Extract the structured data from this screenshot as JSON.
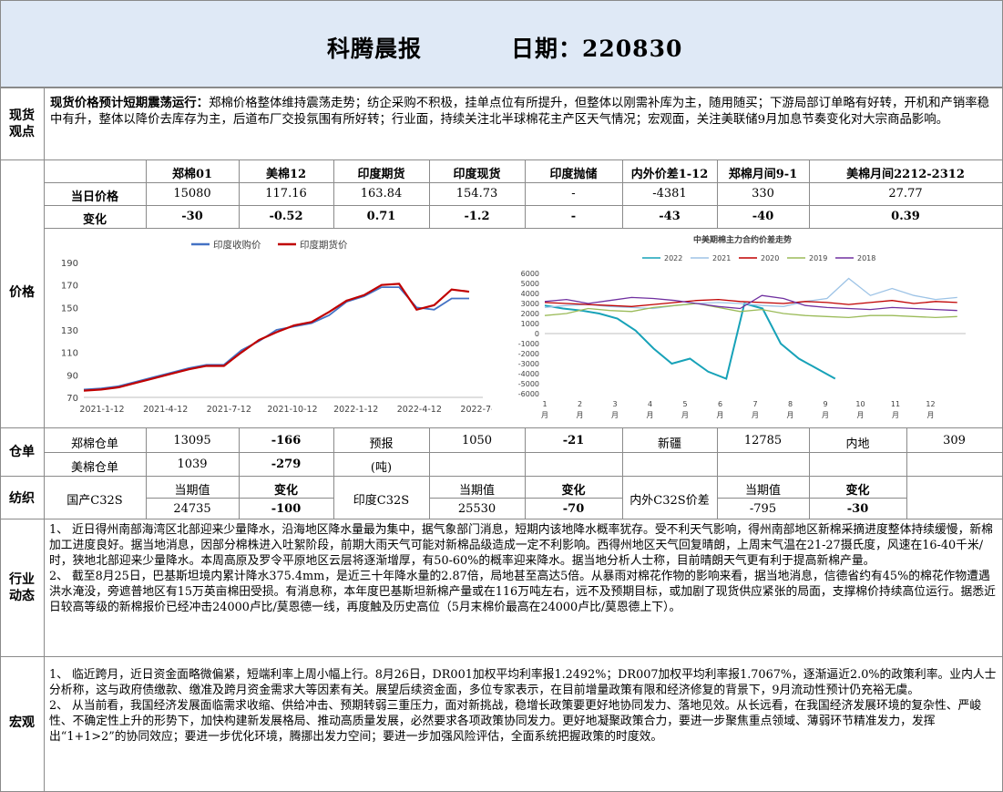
{
  "header": {
    "title": "科腾晨报",
    "date_label": "日期：220830"
  },
  "sections": {
    "spot": "现货\n观点",
    "price": "价格",
    "warehouse": "仓单",
    "textile": "纺织",
    "industry": "行业\n动态",
    "macro": "宏观"
  },
  "spot": {
    "lead": "现货价格预计短期震荡运行：",
    "body": "郑棉价格整体维持震荡走势；纺企采购不积极，挂单点位有所提升，但整体以刚需补库为主，随用随买；下游局部订单略有好转，开机和产销率稳中有升，整体以降价去库存为主，后道布厂交投氛围有所好转；行业面，持续关注北半球棉花主产区天气情况；宏观面，关注美联储9月加息节奏变化对大宗商品影响。"
  },
  "price_table": {
    "headers": [
      "郑棉01",
      "美棉12",
      "印度期货",
      "印度现货",
      "印度抛储",
      "内外价差1-12",
      "郑棉月间9-1",
      "美棉月间2212-2312"
    ],
    "row1_label": "当日价格",
    "row1": [
      "15080",
      "117.16",
      "163.84",
      "154.73",
      "-",
      "-4381",
      "330",
      "27.77"
    ],
    "row2_label": "变化",
    "row2": [
      "-30",
      "-0.52",
      "0.71",
      "-1.2",
      "-",
      "-43",
      "-40",
      "0.39"
    ]
  },
  "chart_data": [
    {
      "type": "line",
      "title": "",
      "legend": [
        "印度收购价",
        "印度期货价"
      ],
      "colors": [
        "#4472c4",
        "#c00000"
      ],
      "yticks": [
        "190",
        "170",
        "150",
        "130",
        "110",
        "90",
        "70"
      ],
      "ylim": [
        70,
        190
      ],
      "xticks": [
        "2021-1-12",
        "2021-4-12",
        "2021-7-12",
        "2021-10-12",
        "2022-1-12",
        "2022-4-12",
        "2022-7-12"
      ],
      "series": [
        {
          "name": "印度收购价",
          "values": [
            77,
            78,
            80,
            84,
            88,
            92,
            96,
            99,
            99,
            112,
            120,
            130,
            133,
            136,
            143,
            155,
            160,
            168,
            168,
            150,
            148,
            158,
            158
          ]
        },
        {
          "name": "印度期货价",
          "values": [
            76,
            77,
            79,
            83,
            87,
            91,
            95,
            98,
            98,
            110,
            121,
            128,
            134,
            137,
            146,
            156,
            161,
            170,
            171,
            148,
            152,
            166,
            164
          ]
        }
      ]
    },
    {
      "type": "line",
      "title": "中美期棉主力合约价差走势",
      "legend": [
        "2022",
        "2021",
        "2020",
        "2019",
        "2018"
      ],
      "colors": [
        "#17a2b8",
        "#9dc3e6",
        "#c00000",
        "#9bbb59",
        "#7030a0"
      ],
      "yticks": [
        "6000",
        "5000",
        "4000",
        "3000",
        "2000",
        "1000",
        "0",
        "-1000",
        "-2000",
        "-3000",
        "-4000",
        "-5000",
        "-6000"
      ],
      "ylim": [
        -6000,
        6000
      ],
      "xticks": [
        "1\n月",
        "2\n月",
        "3\n月",
        "4\n月",
        "5\n月",
        "6\n月",
        "7\n月",
        "8\n月",
        "9\n月",
        "10\n月",
        "11\n月",
        "12\n月"
      ],
      "series": [
        {
          "name": "2022",
          "values": [
            2800,
            2500,
            2300,
            2000,
            1500,
            300,
            -1500,
            -3000,
            -2500,
            -3800,
            -4500,
            3000,
            2500,
            -1000,
            -2500,
            -3500,
            -4500
          ]
        },
        {
          "name": "2021",
          "values": [
            2600,
            2800,
            2900,
            2700,
            2600,
            2500,
            2800,
            3000,
            3100,
            3000,
            2800,
            2700,
            3200,
            3500,
            5500,
            3800,
            4500,
            3800,
            3400,
            3600
          ]
        },
        {
          "name": "2020",
          "values": [
            3100,
            3000,
            2900,
            2800,
            2700,
            2900,
            3100,
            3300,
            3400,
            3200,
            3100,
            3000,
            3200,
            3100,
            2900,
            3100,
            3300,
            3000,
            3200,
            3100
          ]
        },
        {
          "name": "2019",
          "values": [
            1800,
            2000,
            2500,
            2300,
            2200,
            2600,
            2800,
            3000,
            2600,
            2200,
            2400,
            2000,
            1800,
            1700,
            1600,
            1800,
            1800,
            1700,
            1600,
            1700
          ]
        },
        {
          "name": "2018",
          "values": [
            3200,
            3400,
            3000,
            3300,
            3600,
            3500,
            3300,
            3000,
            2700,
            2500,
            3800,
            3500,
            2800,
            2600,
            2500,
            2400,
            2600,
            2500,
            2400,
            2300
          ]
        }
      ]
    }
  ],
  "warehouse": {
    "r1": [
      "郑棉仓单",
      "13095",
      "-166",
      "预报",
      "1050",
      "-21",
      "新疆",
      "12785",
      "内地",
      "309"
    ],
    "r2": [
      "美棉仓单",
      "1039",
      "-279",
      "(吨)"
    ]
  },
  "textile": {
    "h": [
      "当期值",
      "变化",
      "当期值",
      "变化",
      "当期值",
      "变化"
    ],
    "labels": [
      "国产C32S",
      "印度C32S",
      "内外C32S价差"
    ],
    "vals": [
      "24735",
      "-100",
      "25530",
      "-70",
      "-795",
      "-30"
    ]
  },
  "industry": {
    "p1": "1、  近日得州南部海湾区北部迎来少量降水，沿海地区降水量最为集中，据气象部门消息，短期内该地降水概率犹存。受不利天气影响，得州南部地区新棉采摘进度整体持续缓慢，新棉加工进度良好。据当地消息，因部分棉株进入吐絮阶段，前期大雨天气可能对新棉品级造成一定不利影响。西得州地区天气回复晴朗，上周末气温在21-27摄氏度，风速在16-40千米/时，狭地北部迎来少量降水。本周高原及罗令平原地区云层将逐渐增厚，有50-60%的概率迎来降水。据当地分析人士称，目前晴朗天气更有利于提高新棉产量。",
    "p2": "2、  截至8月25日，巴基斯坦境内累计降水375.4mm，是近三十年降水量的2.87倍，局地甚至高达5倍。从暴雨对棉花作物的影响来看，据当地消息，信德省约有45%的棉花作物遭遇洪水淹没，旁遮普地区有15万英亩棉田受损。有消息称，本年度巴基斯坦新棉产量或在116万吨左右，远不及预期目标，或加剧了现货供应紧张的局面，支撑棉价持续高位运行。据悉近日较高等级的新棉报价已经冲击24000卢比/莫恩德一线，再度触及历史高位（5月末棉价最高在24000卢比/莫恩德上下）。"
  },
  "macro": {
    "p1": "1、  临近跨月，近日资金面略微偏紧，短端利率上周小幅上行。8月26日，DR001加权平均利率报1.2492%；DR007加权平均利率报1.7067%，逐渐逼近2.0%的政策利率。业内人士分析称，这与政府债缴款、缴准及跨月资金需求大等因素有关。展望后续资金面，多位专家表示，在目前增量政策有限和经济修复的背景下，9月流动性预计仍充裕无虞。",
    "p2": "2、  从当前看，我国经济发展面临需求收缩、供给冲击、预期转弱三重压力，面对新挑战，稳增长政策要更好地协同发力、落地见效。从长远看，在我国经济发展环境的复杂性、严峻性、不确定性上升的形势下，加快构建新发展格局、推动高质量发展，必然要求各项政策协同发力。更好地凝聚政策合力，要进一步聚焦重点领域、薄弱环节精准发力，发挥出“1+1>2”的协同效应；要进一步优化环境，腾挪出发力空间；要进一步加强风险评估，全面系统把握政策的时度效。"
  }
}
